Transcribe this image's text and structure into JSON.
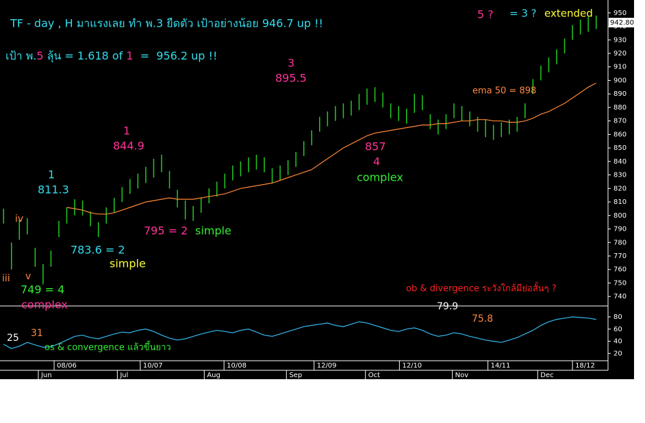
{
  "chart_data": {
    "type": "ohlc",
    "title": "TF - day , H มาแรงเลย ทำ พ.3 ยืดตัว เป้าอย่างน้อย 946.7 up !!",
    "high": [
      805,
      780,
      797,
      798,
      776,
      764,
      774,
      796,
      806,
      812,
      811,
      803,
      795,
      806,
      813,
      821,
      827,
      831,
      836,
      842,
      845,
      833,
      819,
      811,
      807,
      813,
      820,
      825,
      831,
      837,
      840,
      843,
      845,
      843,
      835,
      837,
      841,
      847,
      855,
      863,
      873,
      877,
      881,
      883,
      885,
      890,
      894,
      895,
      891,
      883,
      881,
      879,
      890,
      889,
      875,
      871,
      875,
      883,
      881,
      877,
      873,
      871,
      867,
      869,
      871,
      873,
      883,
      901,
      911,
      917,
      923,
      931,
      941,
      945,
      947,
      948
    ],
    "low": [
      794,
      760,
      782,
      786,
      762,
      749,
      762,
      784,
      794,
      800,
      800,
      792,
      784,
      794,
      802,
      810,
      816,
      820,
      824,
      828,
      832,
      820,
      806,
      797,
      796,
      802,
      809,
      814,
      820,
      826,
      829,
      832,
      834,
      832,
      824,
      826,
      830,
      836,
      844,
      852,
      862,
      866,
      870,
      872,
      874,
      878,
      882,
      884,
      880,
      872,
      870,
      868,
      876,
      878,
      864,
      860,
      864,
      872,
      870,
      866,
      862,
      858,
      856,
      858,
      860,
      862,
      872,
      890,
      900,
      906,
      912,
      920,
      930,
      934,
      936,
      938
    ],
    "bar_color": "#22cc22",
    "ema": {
      "color": "#ff8833",
      "values": [
        null,
        null,
        null,
        null,
        null,
        null,
        null,
        null,
        806,
        805,
        804,
        802,
        801,
        801,
        802,
        804,
        806,
        808,
        810,
        811,
        812,
        813,
        812,
        812,
        812,
        813,
        814,
        815,
        816,
        818,
        820,
        821,
        822,
        823,
        824,
        826,
        828,
        830,
        832,
        834,
        838,
        842,
        846,
        850,
        853,
        856,
        859,
        861,
        862,
        863,
        864,
        865,
        866,
        867,
        867,
        868,
        868,
        869,
        870,
        870,
        871,
        871,
        870,
        870,
        869,
        869,
        870,
        872,
        875,
        877,
        880,
        883,
        887,
        891,
        895,
        898
      ]
    },
    "ylim": [
      733,
      957
    ],
    "yticks": [
      740,
      750,
      760,
      770,
      780,
      790,
      800,
      810,
      820,
      830,
      840,
      850,
      860,
      870,
      880,
      890,
      900,
      910,
      920,
      930,
      940,
      950
    ],
    "last_price": {
      "value": 942.8,
      "label": "942.80"
    },
    "xlim": [
      -0.45,
      76.5
    ],
    "date_ticks": [
      {
        "value": 6.4,
        "label": "08/06"
      },
      {
        "value": 17.3,
        "label": "10/07"
      },
      {
        "value": 27.9,
        "label": "10/08"
      },
      {
        "value": 39.3,
        "label": "12/09"
      },
      {
        "value": 50.1,
        "label": "12/10"
      },
      {
        "value": 61.3,
        "label": "14/11"
      },
      {
        "value": 72,
        "label": "18/12"
      }
    ],
    "month_ticks": [
      {
        "value": 4.4,
        "label": "Jun"
      },
      {
        "value": 14.4,
        "label": "Jul"
      },
      {
        "value": 25.4,
        "label": "Aug"
      },
      {
        "value": 35.8,
        "label": "Sep"
      },
      {
        "value": 45.8,
        "label": "Oct"
      },
      {
        "value": 56.8,
        "label": "Nov"
      },
      {
        "value": 67.6,
        "label": "Dec"
      }
    ],
    "oscillator": {
      "color": "#33bbee",
      "values": [
        35,
        28,
        32,
        38,
        34,
        30,
        31,
        36,
        42,
        48,
        50,
        46,
        44,
        48,
        52,
        55,
        54,
        58,
        60,
        56,
        50,
        45,
        42,
        44,
        48,
        52,
        55,
        58,
        56,
        54,
        58,
        60,
        55,
        50,
        48,
        52,
        56,
        60,
        64,
        66,
        68,
        70,
        66,
        64,
        68,
        72,
        70,
        66,
        62,
        58,
        56,
        60,
        62,
        58,
        52,
        48,
        50,
        54,
        52,
        48,
        45,
        42,
        40,
        38,
        42,
        46,
        52,
        58,
        66,
        72,
        76,
        78,
        80,
        79,
        78,
        76
      ],
      "ylim": [
        8,
        98
      ],
      "yticks": [
        20,
        40,
        60,
        80
      ]
    },
    "annotations": [
      {
        "parts": [
          {
            "text": "เป้า พ.",
            "color": "#33ddee"
          },
          {
            "text": "5",
            "color": "#ff3399"
          },
          {
            "text": " ลุ้น = 1.618 of ",
            "color": "#33ddee"
          },
          {
            "text": "1",
            "color": "#ff3399"
          },
          {
            "text": "  =  956.2 up !!",
            "color": "#33ddee"
          }
        ]
      },
      {
        "text": "5 ?",
        "color": "#ff3399"
      },
      {
        "text": "= 3 ?",
        "color": "#33ddee"
      },
      {
        "text": "extended",
        "color": "#ffff33"
      },
      {
        "text": "3",
        "color": "#ff3399"
      },
      {
        "text": "895.5",
        "color": "#ff3399"
      },
      {
        "text": "1",
        "color": "#ff3399"
      },
      {
        "text": "844.9",
        "color": "#ff3399"
      },
      {
        "text": "1",
        "color": "#33ddee"
      },
      {
        "text": "811.3",
        "color": "#33ddee"
      },
      {
        "text": "iv",
        "color": "#ff8844"
      },
      {
        "text": "iii",
        "color": "#ff8844"
      },
      {
        "text": "v",
        "color": "#ff8844"
      },
      {
        "text": "749 = 4",
        "color": "#33ee33"
      },
      {
        "text": "complex",
        "color": "#ff3399"
      },
      {
        "text": "783.6 = 2",
        "color": "#33ddee"
      },
      {
        "text": "simple",
        "color": "#ffff33"
      },
      {
        "text": "795 = 2",
        "color": "#ff3399"
      },
      {
        "text": "simple",
        "color": "#33ee33"
      },
      {
        "text": "857",
        "color": "#ff3399"
      },
      {
        "text": "4",
        "color": "#ff3399"
      },
      {
        "text": "complex",
        "color": "#33ee33"
      },
      {
        "text": "ema 50 = 898",
        "color": "#ff8844"
      },
      {
        "text": "ob & divergence ระวังใกล้มีย่อสั้นๆ ?",
        "color": "#ff2222"
      },
      {
        "text": "79.9",
        "color": "#ffffff"
      },
      {
        "text": "75.8",
        "color": "#ff8844"
      },
      {
        "text": "25",
        "color": "#ffffff"
      },
      {
        "text": "31",
        "color": "#ff8844"
      },
      {
        "text": "os & convergence แล้วขึ้นยาว",
        "color": "#33ee33"
      }
    ]
  }
}
